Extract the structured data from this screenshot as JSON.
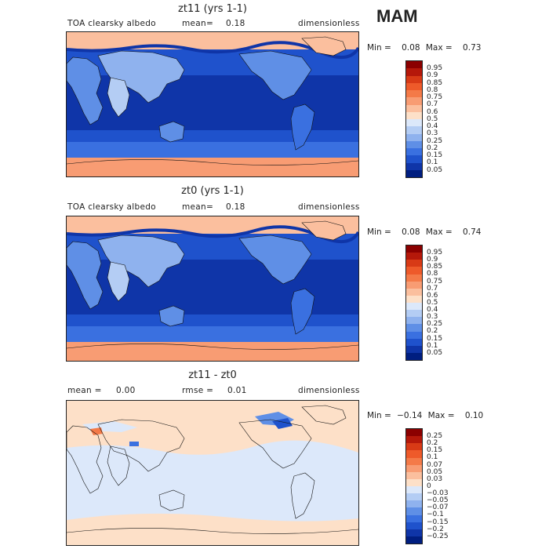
{
  "season": "MAM",
  "panels": [
    {
      "title": "zt11 (yrs 1-1)",
      "left": "TOA clearsky albedo",
      "mean_label": "mean=",
      "mean_value": "0.18",
      "units": "dimensionless",
      "min_label": "Min =",
      "min_value": "0.08",
      "max_label": "Max =",
      "max_value": "0.73",
      "levels": [
        "0.95",
        "0.9",
        "0.85",
        "0.8",
        "0.75",
        "0.7",
        "0.6",
        "0.5",
        "0.4",
        "0.3",
        "0.25",
        "0.2",
        "0.15",
        "0.1",
        "0.05"
      ],
      "colors": [
        "#8b0000",
        "#b5180a",
        "#d83a16",
        "#ee5a2a",
        "#f47a48",
        "#f89c73",
        "#fbbf9e",
        "#fde0c8",
        "#dce8fa",
        "#b4cdf4",
        "#8fb2ee",
        "#5f8fe6",
        "#3a70e0",
        "#1f52cc",
        "#0f35a8",
        "#001e80"
      ]
    },
    {
      "title": "zt0 (yrs 1-1)",
      "left": "TOA clearsky albedo",
      "mean_label": "mean=",
      "mean_value": "0.18",
      "units": "dimensionless",
      "min_label": "Min =",
      "min_value": "0.08",
      "max_label": "Max =",
      "max_value": "0.74",
      "levels": [
        "0.95",
        "0.9",
        "0.85",
        "0.8",
        "0.75",
        "0.7",
        "0.6",
        "0.5",
        "0.4",
        "0.3",
        "0.25",
        "0.2",
        "0.15",
        "0.1",
        "0.05"
      ],
      "colors": [
        "#8b0000",
        "#b5180a",
        "#d83a16",
        "#ee5a2a",
        "#f47a48",
        "#f89c73",
        "#fbbf9e",
        "#fde0c8",
        "#dce8fa",
        "#b4cdf4",
        "#8fb2ee",
        "#5f8fe6",
        "#3a70e0",
        "#1f52cc",
        "#0f35a8",
        "#001e80"
      ]
    },
    {
      "title": "zt11 - zt0",
      "mean_label": "mean =",
      "mean_value": "0.00",
      "rmse_label": "rmse =",
      "rmse_value": "0.01",
      "units": "dimensionless",
      "min_label": "Min =",
      "min_value": "−0.14",
      "max_label": "Max =",
      "max_value": "0.10",
      "levels": [
        "0.25",
        "0.2",
        "0.15",
        "0.1",
        "0.07",
        "0.05",
        "0.03",
        "0",
        "−0.03",
        "−0.05",
        "−0.07",
        "−0.1",
        "−0.15",
        "−0.2",
        "−0.25"
      ],
      "colors": [
        "#8b0000",
        "#b5180a",
        "#d83a16",
        "#ee5a2a",
        "#f47a48",
        "#f89c73",
        "#fbbf9e",
        "#fde0c8",
        "#dce8fa",
        "#b4cdf4",
        "#8fb2ee",
        "#5f8fe6",
        "#3a70e0",
        "#1f52cc",
        "#0f35a8",
        "#001e80"
      ]
    }
  ]
}
